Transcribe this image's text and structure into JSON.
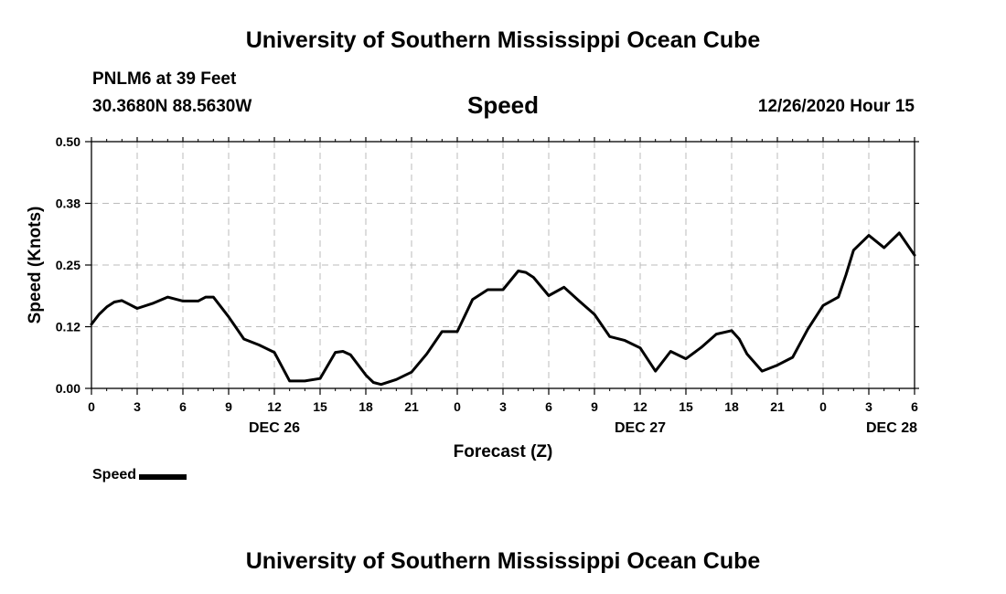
{
  "header": {
    "title": "University of Southern Mississippi Ocean Cube",
    "station": "PNLM6 at 39 Feet",
    "coordinates": "30.3680N 88.5630W",
    "variable": "Speed",
    "datetime": "12/26/2020 Hour 15"
  },
  "footer": {
    "title": "University of Southern Mississippi Ocean Cube"
  },
  "legend": {
    "label": "Speed",
    "color": "#000000"
  },
  "chart_data": {
    "type": "line",
    "title": "Speed",
    "xlabel": "Forecast (Z)",
    "ylabel": "Speed (Knots)",
    "xlim": [
      0,
      54
    ],
    "ylim": [
      0.0,
      0.5
    ],
    "grid": true,
    "yticks": [
      {
        "value": 0.0,
        "label": "0.00"
      },
      {
        "value": 0.125,
        "label": "0.12"
      },
      {
        "value": 0.25,
        "label": "0.25"
      },
      {
        "value": 0.375,
        "label": "0.38"
      },
      {
        "value": 0.5,
        "label": "0.50"
      }
    ],
    "xticks": [
      {
        "value": 0,
        "label": "0"
      },
      {
        "value": 3,
        "label": "3"
      },
      {
        "value": 6,
        "label": "6"
      },
      {
        "value": 9,
        "label": "9"
      },
      {
        "value": 12,
        "label": "12"
      },
      {
        "value": 15,
        "label": "15"
      },
      {
        "value": 18,
        "label": "18"
      },
      {
        "value": 21,
        "label": "21"
      },
      {
        "value": 24,
        "label": "0"
      },
      {
        "value": 27,
        "label": "3"
      },
      {
        "value": 30,
        "label": "6"
      },
      {
        "value": 33,
        "label": "9"
      },
      {
        "value": 36,
        "label": "12"
      },
      {
        "value": 39,
        "label": "15"
      },
      {
        "value": 42,
        "label": "18"
      },
      {
        "value": 45,
        "label": "21"
      },
      {
        "value": 48,
        "label": "0"
      },
      {
        "value": 51,
        "label": "3"
      },
      {
        "value": 54,
        "label": "6"
      }
    ],
    "date_labels": [
      {
        "value": 12,
        "label": "DEC 26"
      },
      {
        "value": 36,
        "label": "DEC 27"
      },
      {
        "value": 52.5,
        "label": "DEC 28"
      }
    ],
    "series": [
      {
        "name": "Speed",
        "color": "#000000",
        "x": [
          0,
          0.5,
          1,
          1.5,
          2,
          2.5,
          3,
          4,
          5,
          6,
          7,
          7.5,
          8,
          9,
          10,
          11,
          12,
          13,
          14,
          15,
          16,
          16.5,
          17,
          18,
          18.5,
          19,
          20,
          21,
          22,
          23,
          24,
          25,
          26,
          27,
          28,
          28.5,
          29,
          30,
          31,
          32,
          33,
          34,
          35,
          36,
          37,
          38,
          39,
          40,
          41,
          42,
          42.5,
          43,
          44,
          45,
          46,
          47,
          48,
          49,
          49.5,
          50,
          51,
          52,
          53,
          54
        ],
        "y": [
          0.13,
          0.15,
          0.165,
          0.175,
          0.178,
          0.17,
          0.162,
          0.172,
          0.185,
          0.177,
          0.177,
          0.185,
          0.185,
          0.145,
          0.1,
          0.088,
          0.073,
          0.015,
          0.015,
          0.02,
          0.073,
          0.075,
          0.068,
          0.027,
          0.012,
          0.008,
          0.018,
          0.033,
          0.07,
          0.115,
          0.115,
          0.18,
          0.2,
          0.2,
          0.238,
          0.235,
          0.225,
          0.188,
          0.205,
          0.177,
          0.15,
          0.105,
          0.097,
          0.082,
          0.035,
          0.075,
          0.06,
          0.083,
          0.11,
          0.117,
          0.1,
          0.07,
          0.035,
          0.047,
          0.063,
          0.12,
          0.168,
          0.185,
          0.23,
          0.28,
          0.31,
          0.285,
          0.315,
          0.27
        ]
      }
    ]
  }
}
